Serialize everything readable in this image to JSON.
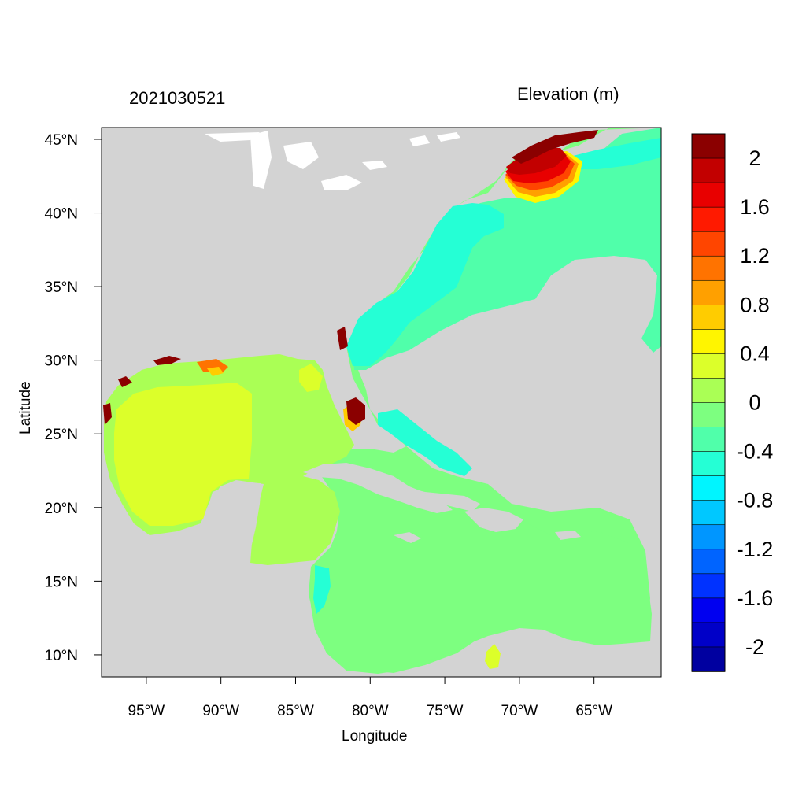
{
  "header": {
    "date_code": "2021030521",
    "variable_title": "Elevation (m)"
  },
  "axes": {
    "x_label": "Longitude",
    "y_label": "Latitude",
    "x_ticks": [
      {
        "value": -95,
        "label": "95°W"
      },
      {
        "value": -90,
        "label": "90°W"
      },
      {
        "value": -85,
        "label": "85°W"
      },
      {
        "value": -80,
        "label": "80°W"
      },
      {
        "value": -75,
        "label": "75°W"
      },
      {
        "value": -70,
        "label": "70°W"
      },
      {
        "value": -65,
        "label": "65°W"
      }
    ],
    "y_ticks": [
      {
        "value": 45,
        "label": "45°N"
      },
      {
        "value": 40,
        "label": "40°N"
      },
      {
        "value": 35,
        "label": "35°N"
      },
      {
        "value": 30,
        "label": "30°N"
      },
      {
        "value": 25,
        "label": "25°N"
      },
      {
        "value": 20,
        "label": "20°N"
      },
      {
        "value": 15,
        "label": "15°N"
      },
      {
        "value": 10,
        "label": "10°N"
      }
    ],
    "lon_range": [
      -98,
      -60.5
    ],
    "lat_range": [
      8.5,
      45.8
    ]
  },
  "colorbar": {
    "labels": [
      "2",
      "1.6",
      "1.2",
      "0.8",
      "0.4",
      "0",
      "-0.4",
      "-0.8",
      "-1.2",
      "-1.6",
      "-2"
    ],
    "colors": [
      "#8b0000",
      "#c20000",
      "#e80000",
      "#ff1a00",
      "#ff4500",
      "#ff7300",
      "#ffa000",
      "#ffcc00",
      "#fff500",
      "#dcff2a",
      "#aaff55",
      "#7dff80",
      "#50ffaa",
      "#25ffd5",
      "#00f5ff",
      "#00c8ff",
      "#0096ff",
      "#0064ff",
      "#0032ff",
      "#0000f0",
      "#0000c8",
      "#0000a0"
    ]
  },
  "map": {
    "land_color": "#d3d3d3",
    "ocean_background_level": "0 to -0.2 m",
    "ocean_background_color": "#7dff80",
    "shelf_color": "#50ffaa",
    "gulf_color": "#aaff55",
    "gulf_core_color": "#dcff2a",
    "surge_core_color": "#8b0000"
  }
}
